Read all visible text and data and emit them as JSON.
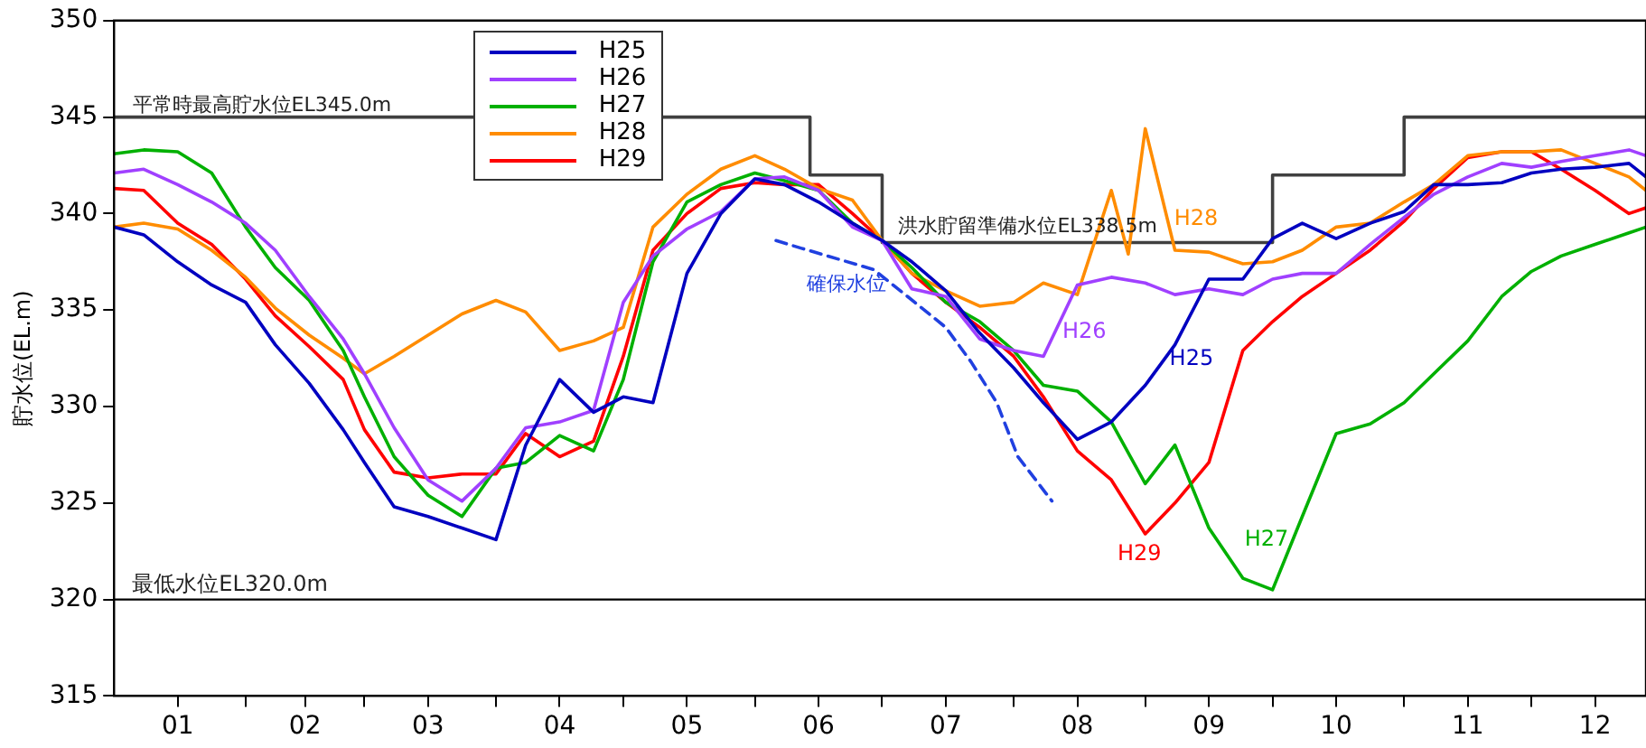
{
  "chart_data": {
    "type": "line",
    "ylabel": "貯水位(EL.m)",
    "x": [
      "--01-01",
      "--01-08",
      "--01-16",
      "--01-24",
      "--02-01",
      "--02-08",
      "--02-16",
      "--02-24",
      "--03-01",
      "--03-08",
      "--03-16",
      "--03-24",
      "--04-01",
      "--04-08",
      "--04-16",
      "--04-24",
      "--05-01",
      "--05-08",
      "--05-16",
      "--05-24",
      "--06-01",
      "--06-08",
      "--06-16",
      "--06-24",
      "--07-01",
      "--07-08",
      "--07-16",
      "--07-24",
      "--08-01",
      "--08-08",
      "--08-16",
      "--08-24",
      "--09-01",
      "--09-08",
      "--09-16",
      "--09-24",
      "--10-01",
      "--10-08",
      "--10-16",
      "--10-24",
      "--11-01",
      "--11-08",
      "--11-16",
      "--11-24",
      "--12-01",
      "--12-08",
      "--12-16",
      "--12-24",
      "--12-28"
    ],
    "series": [
      {
        "name": "H25",
        "color": "#0000c0",
        "values": [
          339.3,
          338.9,
          337.5,
          336.3,
          335.4,
          333.2,
          331.2,
          328.8,
          327.1,
          324.8,
          324.3,
          323.7,
          323.1,
          328,
          331.4,
          329.7,
          330.5,
          330.2,
          336.9,
          340,
          341.8,
          341.5,
          340.6,
          339.5,
          338.6,
          337.5,
          336,
          333.8,
          332,
          330.2,
          328.3,
          329.2,
          331.1,
          333.2,
          336.6,
          336.6,
          338.7,
          339.5,
          338.7,
          339.5,
          340.1,
          341.5,
          341.5,
          341.6,
          342.1,
          342.3,
          342.4,
          342.6,
          341.9
        ]
      },
      {
        "name": "H26",
        "color": "#a040ff",
        "values": [
          342.1,
          342.3,
          341.5,
          340.6,
          339.5,
          338.1,
          335.7,
          333.5,
          331.7,
          328.9,
          326.2,
          325.1,
          326.8,
          328.9,
          329.2,
          329.8,
          335.4,
          337.8,
          339.2,
          340.1,
          341.8,
          341.9,
          341.2,
          339.3,
          338.6,
          336.1,
          335.7,
          333.5,
          332.9,
          332.6,
          336.3,
          336.7,
          336.4,
          335.8,
          336.1,
          335.8,
          336.6,
          336.9,
          336.9,
          338.4,
          339.8,
          341,
          341.9,
          342.6,
          342.4,
          342.7,
          343,
          343.3,
          343
        ]
      },
      {
        "name": "H27",
        "color": "#00b000",
        "values": [
          343.1,
          343.3,
          343.2,
          342.1,
          339.3,
          337.2,
          335.5,
          332.9,
          330.5,
          327.4,
          325.4,
          324.3,
          326.8,
          327.1,
          328.5,
          327.7,
          331.4,
          337.5,
          340.6,
          341.5,
          342.1,
          341.7,
          341.2,
          339.5,
          338.6,
          337.2,
          335.4,
          334.4,
          332.9,
          331.1,
          330.8,
          329.2,
          326,
          328,
          323.7,
          321.1,
          320.5,
          324.3,
          328.6,
          329.1,
          330.2,
          331.7,
          333.4,
          335.7,
          337,
          337.8,
          338.4,
          339,
          339.3
        ]
      },
      {
        "name": "H28",
        "color": "#ff8c00",
        "x": [
          "--01-01",
          "--01-08",
          "--01-16",
          "--01-24",
          "--02-01",
          "--02-08",
          "--02-16",
          "--02-24",
          "--03-01",
          "--03-08",
          "--03-16",
          "--03-24",
          "--04-01",
          "--04-08",
          "--04-16",
          "--04-24",
          "--05-01",
          "--05-08",
          "--05-16",
          "--05-24",
          "--06-01",
          "--06-08",
          "--06-16",
          "--06-24",
          "--07-01",
          "--07-08",
          "--07-16",
          "--07-24",
          "--08-01",
          "--08-08",
          "--08-16",
          "--08-24",
          "--08-28",
          "--09-01",
          "--09-08",
          "--09-16",
          "--09-24",
          "--10-01",
          "--10-08",
          "--10-16",
          "--10-24",
          "--11-01",
          "--11-08",
          "--11-16",
          "--11-24",
          "--12-01",
          "--12-08",
          "--12-16",
          "--12-24",
          "--12-28"
        ],
        "values": [
          339.3,
          339.5,
          339.2,
          338.1,
          336.7,
          335.1,
          333.7,
          332.5,
          331.7,
          332.6,
          333.7,
          334.8,
          335.5,
          334.9,
          332.9,
          333.4,
          334.1,
          339.3,
          341,
          342.3,
          343,
          342.3,
          341.3,
          340.7,
          338.6,
          336.9,
          336,
          335.2,
          335.4,
          336.4,
          335.8,
          341.2,
          337.9,
          344.4,
          338.1,
          338,
          337.4,
          337.5,
          338.1,
          339.3,
          339.5,
          340.6,
          341.5,
          343,
          343.2,
          343.2,
          343.3,
          342.6,
          341.9,
          341.2
        ]
      },
      {
        "name": "H29",
        "color": "#ff0000",
        "values": [
          341.3,
          341.2,
          339.5,
          338.4,
          336.6,
          334.7,
          333.1,
          331.4,
          328.8,
          326.6,
          326.3,
          326.5,
          326.5,
          328.6,
          327.4,
          328.2,
          332.6,
          338.1,
          340,
          341.3,
          341.6,
          341.5,
          341.5,
          340,
          338.6,
          336.9,
          335.4,
          334.1,
          332.6,
          330.5,
          327.7,
          326.2,
          323.4,
          325,
          327.1,
          332.9,
          334.4,
          335.7,
          336.9,
          338.1,
          339.6,
          341.3,
          342.9,
          343.2,
          343.2,
          342.3,
          341.2,
          340,
          340.3
        ]
      },
      {
        "color": "#2040e0",
        "line_style": "dashed",
        "x": [
          "--06-06",
          "--06-12",
          "--06-29",
          "--07-07",
          "--07-16",
          "--07-22",
          "--07-28",
          "--08-02",
          "--08-10"
        ],
        "values": [
          338.6,
          338.2,
          337.1,
          335.7,
          334.1,
          332.3,
          330.2,
          327.4,
          325.1
        ]
      },
      {
        "type": "step",
        "color": "#404040",
        "x": [
          "--01-01",
          "--06-14",
          "--07-01",
          "--10-01",
          "--11-01",
          "--12-28"
        ],
        "values": [
          345,
          342,
          338.5,
          342,
          345,
          345
        ]
      }
    ],
    "ref_lines": [
      {
        "axis": "y",
        "value": 320,
        "label": "最低水位EL320.0m",
        "color": "#000000"
      }
    ],
    "annotations": [
      "平常時最高貯水位EL345.0m",
      "洪水貯留準備水位EL338.5m",
      "確保水位"
    ],
    "xlim": [
      "--01-01",
      "--12-28"
    ],
    "xticks": [
      {
        "value": "--01-16",
        "label": "01"
      },
      {
        "value": "--02-01",
        "label": null
      },
      {
        "value": "--02-15",
        "label": "02"
      },
      {
        "value": "--03-01",
        "label": null
      },
      {
        "value": "--03-16",
        "label": "03"
      },
      {
        "value": "--04-01",
        "label": null
      },
      {
        "value": "--04-16",
        "label": "04"
      },
      {
        "value": "--05-01",
        "label": null
      },
      {
        "value": "--05-16",
        "label": "05"
      },
      {
        "value": "--06-01",
        "label": null
      },
      {
        "value": "--06-16",
        "label": "06"
      },
      {
        "value": "--07-01",
        "label": null
      },
      {
        "value": "--07-16",
        "label": "07"
      },
      {
        "value": "--08-01",
        "label": null
      },
      {
        "value": "--08-16",
        "label": "08"
      },
      {
        "value": "--09-01",
        "label": null
      },
      {
        "value": "--09-16",
        "label": "09"
      },
      {
        "value": "--10-01",
        "label": null
      },
      {
        "value": "--10-16",
        "label": "10"
      },
      {
        "value": "--11-01",
        "label": null
      },
      {
        "value": "--11-16",
        "label": "11"
      },
      {
        "value": "--12-01",
        "label": null
      },
      {
        "value": "--12-16",
        "label": "12"
      }
    ],
    "ylim": [
      315,
      350
    ],
    "yticks": [
      315,
      320,
      325,
      330,
      335,
      340,
      345,
      350
    ],
    "grid": false,
    "legend": "top left",
    "marker": "none"
  }
}
